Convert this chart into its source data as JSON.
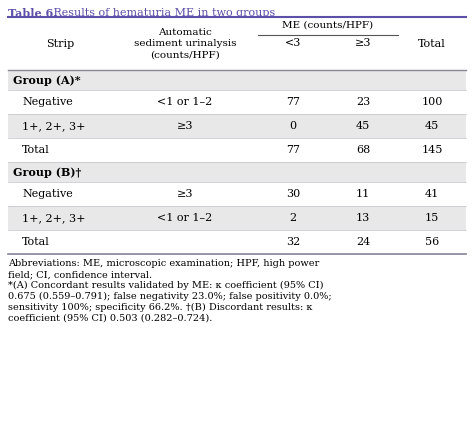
{
  "title_bold": "Table 6.",
  "title_rest": " Results of hematuria ME in two groups",
  "title_color": "#5b4fa8",
  "me_header": "ME (counts/HPF)",
  "col1_header": "Strip",
  "col2_header": "Automatic\nsediment urinalysis\n(counts/HPF)",
  "col3_header": "<3",
  "col4_header": "≥3",
  "col5_header": "Total",
  "rows": [
    {
      "type": "group",
      "c1": "Group (A)*",
      "c2": "",
      "c3": "",
      "c4": "",
      "c5": "",
      "bg": "#e8e8e8"
    },
    {
      "type": "data",
      "c1": "Negative",
      "c2": "<1 or 1–2",
      "c3": "77",
      "c4": "23",
      "c5": "100",
      "bg": "#ffffff"
    },
    {
      "type": "data",
      "c1": "1+, 2+, 3+",
      "c2": "≥3",
      "c3": "0",
      "c4": "45",
      "c5": "45",
      "bg": "#e8e8e8"
    },
    {
      "type": "data",
      "c1": "Total",
      "c2": "",
      "c3": "77",
      "c4": "68",
      "c5": "145",
      "bg": "#ffffff"
    },
    {
      "type": "group",
      "c1": "Group (B)†",
      "c2": "",
      "c3": "",
      "c4": "",
      "c5": "",
      "bg": "#e8e8e8"
    },
    {
      "type": "data",
      "c1": "Negative",
      "c2": "≥3",
      "c3": "30",
      "c4": "11",
      "c5": "41",
      "bg": "#ffffff"
    },
    {
      "type": "data",
      "c1": "1+, 2+, 3+",
      "c2": "<1 or 1–2",
      "c3": "2",
      "c4": "13",
      "c5": "15",
      "bg": "#e8e8e8"
    },
    {
      "type": "data",
      "c1": "Total",
      "c2": "",
      "c3": "32",
      "c4": "24",
      "c5": "56",
      "bg": "#ffffff"
    }
  ],
  "footnote_line1": "Abbreviations: ME, microscopic examination; HPF, high power",
  "footnote_line2": "field; CI, confidence interval.",
  "footnote_line3": "*(A) Concordant results validated by ME: κ coefficient (95% CI)",
  "footnote_line4": "0.675 (0.559–0.791); false negativity 23.0%; false positivity 0.0%;",
  "footnote_line5": "sensitivity 100%; specificity 66.2%. †(B) Discordant results: κ",
  "footnote_line6": "coefficient (95% CI) 0.503 (0.282–0.724).",
  "border_dark": "#9090b0",
  "border_light": "#c8c8d0",
  "bg_white": "#ffffff",
  "bg_gray": "#e8e8e8",
  "text_black": "#1a1a1a"
}
